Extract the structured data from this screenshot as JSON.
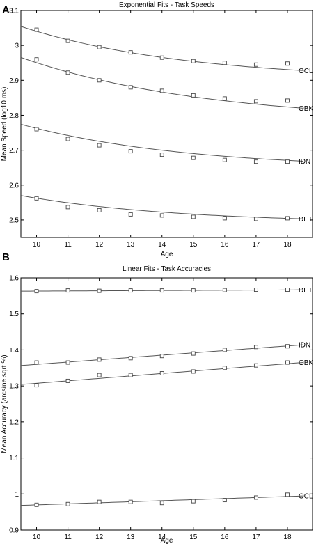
{
  "chart_data": [
    {
      "panel": "A",
      "type": "scatter",
      "title": "Exponential Fits - Task Speeds",
      "xlabel": "Age",
      "ylabel": "Mean Speed (log10 ms)",
      "xlim": [
        9.5,
        18.8
      ],
      "ylim": [
        2.45,
        3.1
      ],
      "xticks": [
        10,
        11,
        12,
        13,
        14,
        15,
        16,
        17,
        18
      ],
      "yticks": [
        2.5,
        2.6,
        2.7,
        2.8,
        2.9,
        3.0,
        3.1
      ],
      "ytick_labels": [
        "2.5",
        "2.6",
        "2.7",
        "2.8",
        "2.9",
        "3",
        "3.1"
      ],
      "grid": false,
      "x": [
        10,
        11,
        12,
        13,
        14,
        15,
        16,
        17,
        18
      ],
      "series": [
        {
          "name": "OCL",
          "values": [
            3.045,
            3.013,
            2.995,
            2.98,
            2.965,
            2.955,
            2.95,
            2.945,
            2.948
          ],
          "fit": {
            "kind": "exponential",
            "a": 2.9,
            "b": 0.1405,
            "k": 0.19
          }
        },
        {
          "name": "OBK",
          "values": [
            2.96,
            2.922,
            2.9,
            2.88,
            2.87,
            2.857,
            2.848,
            2.84,
            2.842
          ],
          "fit": {
            "kind": "exponential",
            "a": 2.78,
            "b": 0.1705,
            "k": 0.17
          }
        },
        {
          "name": "IDN",
          "values": [
            2.76,
            2.732,
            2.714,
            2.697,
            2.687,
            2.678,
            2.672,
            2.667,
            2.667
          ],
          "fit": {
            "kind": "exponential",
            "a": 2.645,
            "b": 0.1175,
            "k": 0.19
          }
        },
        {
          "name": "DET",
          "values": [
            2.562,
            2.537,
            2.528,
            2.516,
            2.513,
            2.509,
            2.505,
            2.503,
            2.505
          ],
          "fit": {
            "kind": "exponential",
            "a": 2.49,
            "b": 0.0725,
            "k": 0.2
          }
        }
      ]
    },
    {
      "panel": "B",
      "type": "scatter",
      "title": "Linear Fits - Task Accuracies",
      "xlabel": "Age",
      "ylabel": "Mean Accuracy (arcsine sqrt %)",
      "xlim": [
        9.5,
        18.8
      ],
      "ylim": [
        0.9,
        1.6
      ],
      "xticks": [
        10,
        11,
        12,
        13,
        14,
        15,
        16,
        17,
        18
      ],
      "yticks": [
        0.9,
        1.0,
        1.1,
        1.2,
        1.3,
        1.4,
        1.5,
        1.6
      ],
      "ytick_labels": [
        "0.9",
        "1",
        "1.1",
        "1.2",
        "1.3",
        "1.4",
        "1.5",
        "1.6"
      ],
      "grid": false,
      "x": [
        10,
        11,
        12,
        13,
        14,
        15,
        16,
        17,
        18
      ],
      "series": [
        {
          "name": "DET",
          "values": [
            1.563,
            1.565,
            1.564,
            1.565,
            1.565,
            1.565,
            1.566,
            1.567,
            1.567
          ],
          "fit": {
            "kind": "linear",
            "slope": 0.0004,
            "intercept": 1.5592
          }
        },
        {
          "name": "IDN",
          "values": [
            1.365,
            1.365,
            1.373,
            1.377,
            1.383,
            1.39,
            1.4,
            1.408,
            1.41
          ],
          "fit": {
            "kind": "linear",
            "slope": 0.0064,
            "intercept": 1.2958
          }
        },
        {
          "name": "OBK",
          "values": [
            1.302,
            1.314,
            1.33,
            1.33,
            1.335,
            1.34,
            1.35,
            1.357,
            1.365
          ],
          "fit": {
            "kind": "linear",
            "slope": 0.0068,
            "intercept": 1.2393
          }
        },
        {
          "name": "OCL",
          "values": [
            0.97,
            0.972,
            0.978,
            0.978,
            0.975,
            0.98,
            0.983,
            0.99,
            0.998
          ],
          "fit": {
            "kind": "linear",
            "slope": 0.0029,
            "intercept": 0.9408
          }
        }
      ]
    }
  ]
}
